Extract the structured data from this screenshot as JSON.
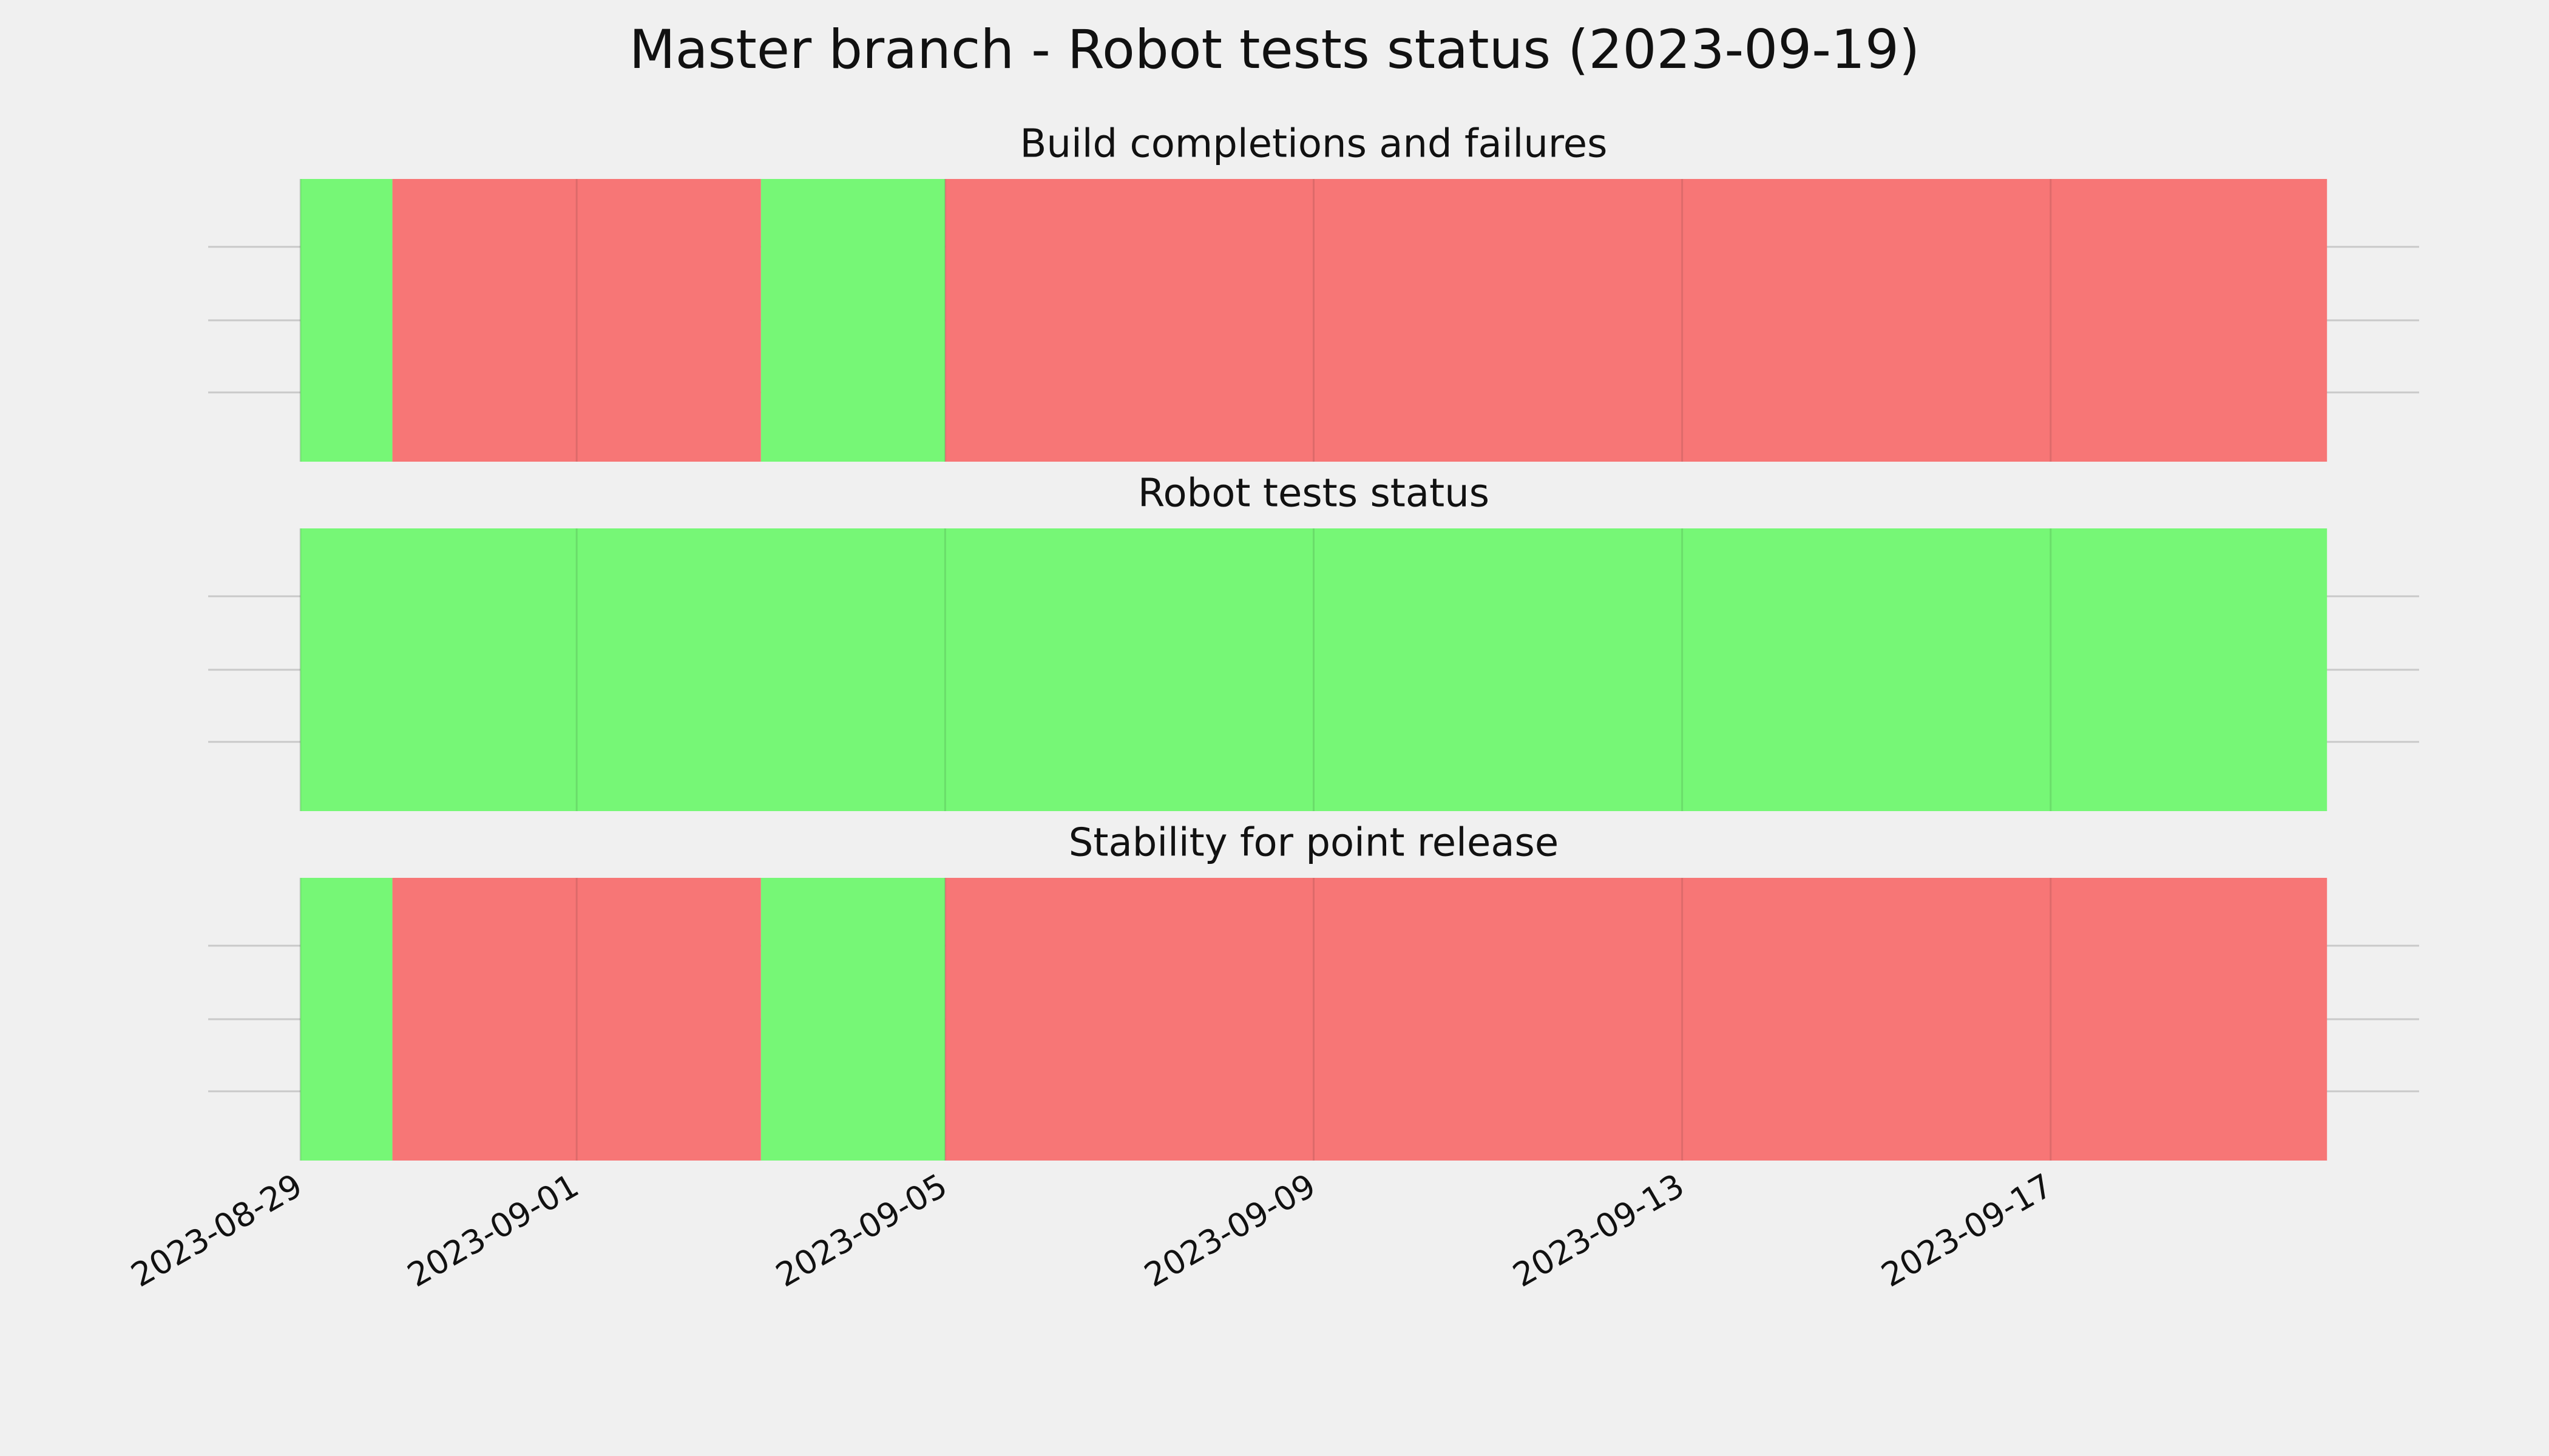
{
  "title": "Master branch - Robot tests status (2023-09-19)",
  "chart_data": [
    {
      "type": "timeline",
      "title": "Build completions and failures",
      "series": [
        {
          "color": "#76f776",
          "start": [
            "2023-08-29",
            "2023-09-03"
          ],
          "end": [
            "2023-08-30",
            "2023-09-05"
          ]
        },
        {
          "color": "#f77676",
          "start": [
            "2023-08-30",
            "2023-09-05"
          ],
          "end": [
            "2023-09-03",
            "2023-09-20"
          ]
        }
      ]
    },
    {
      "type": "timeline",
      "title": "Robot tests status",
      "series": [
        {
          "color": "#76f776",
          "start": [
            "2023-08-29"
          ],
          "end": [
            "2023-09-20"
          ]
        }
      ]
    },
    {
      "type": "timeline",
      "title": "Stability for point release",
      "series": [
        {
          "color": "#76f776",
          "start": [
            "2023-08-29",
            "2023-09-03"
          ],
          "end": [
            "2023-08-30",
            "2023-09-05"
          ]
        },
        {
          "color": "#f77676",
          "start": [
            "2023-08-30",
            "2023-09-05"
          ],
          "end": [
            "2023-09-03",
            "2023-09-20"
          ]
        }
      ],
      "xlim": [
        "2023-08-28",
        "2023-09-21"
      ],
      "xticks": [
        "2023-08-29",
        "2023-09-01",
        "2023-09-05",
        "2023-09-09",
        "2023-09-13",
        "2023-09-17"
      ],
      "grid": true
    }
  ]
}
